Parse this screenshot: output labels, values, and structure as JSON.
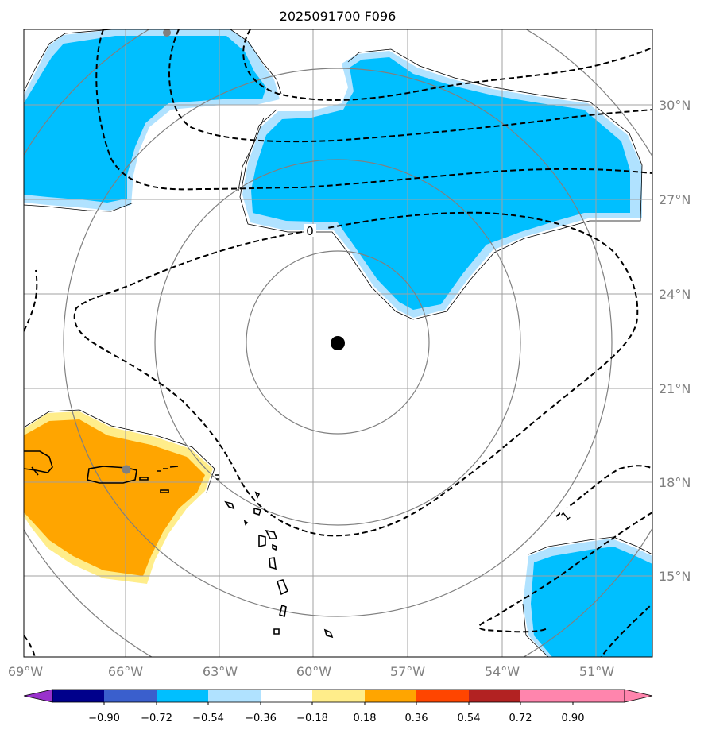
{
  "map": {
    "title": "2025091700 F096",
    "storm_center": {
      "lon": -59.4,
      "lat": 22.4
    },
    "longitude_labels": [
      "69°W",
      "66°W",
      "63°W",
      "60°W",
      "57°W",
      "54°W",
      "51°W"
    ],
    "latitude_labels": [
      "30°N",
      "27°N",
      "24°N",
      "21°N",
      "18°N",
      "15°N"
    ],
    "contour_labels": [
      "0",
      "1"
    ],
    "colors": {
      "neg_strong": "#00bfff",
      "neg_weak": "#b0e2ff",
      "pos_weak": "#ffed8a",
      "pos_strong": "#ffa500",
      "gridline": "#a0a0a0",
      "range_ring": "#808080"
    }
  },
  "colorbar": {
    "tick_labels": [
      "−0.90",
      "−0.72",
      "−0.54",
      "−0.36",
      "−0.18",
      "0.18",
      "0.36",
      "0.54",
      "0.72",
      "0.90"
    ],
    "colors": [
      "#9932cc",
      "#00008b",
      "#3a5fcd",
      "#00bfff",
      "#b0e2ff",
      "#ffffff",
      "#ffed8a",
      "#ffa500",
      "#ff4500",
      "#b22222",
      "#ff85ad",
      "#ff85ad"
    ]
  }
}
